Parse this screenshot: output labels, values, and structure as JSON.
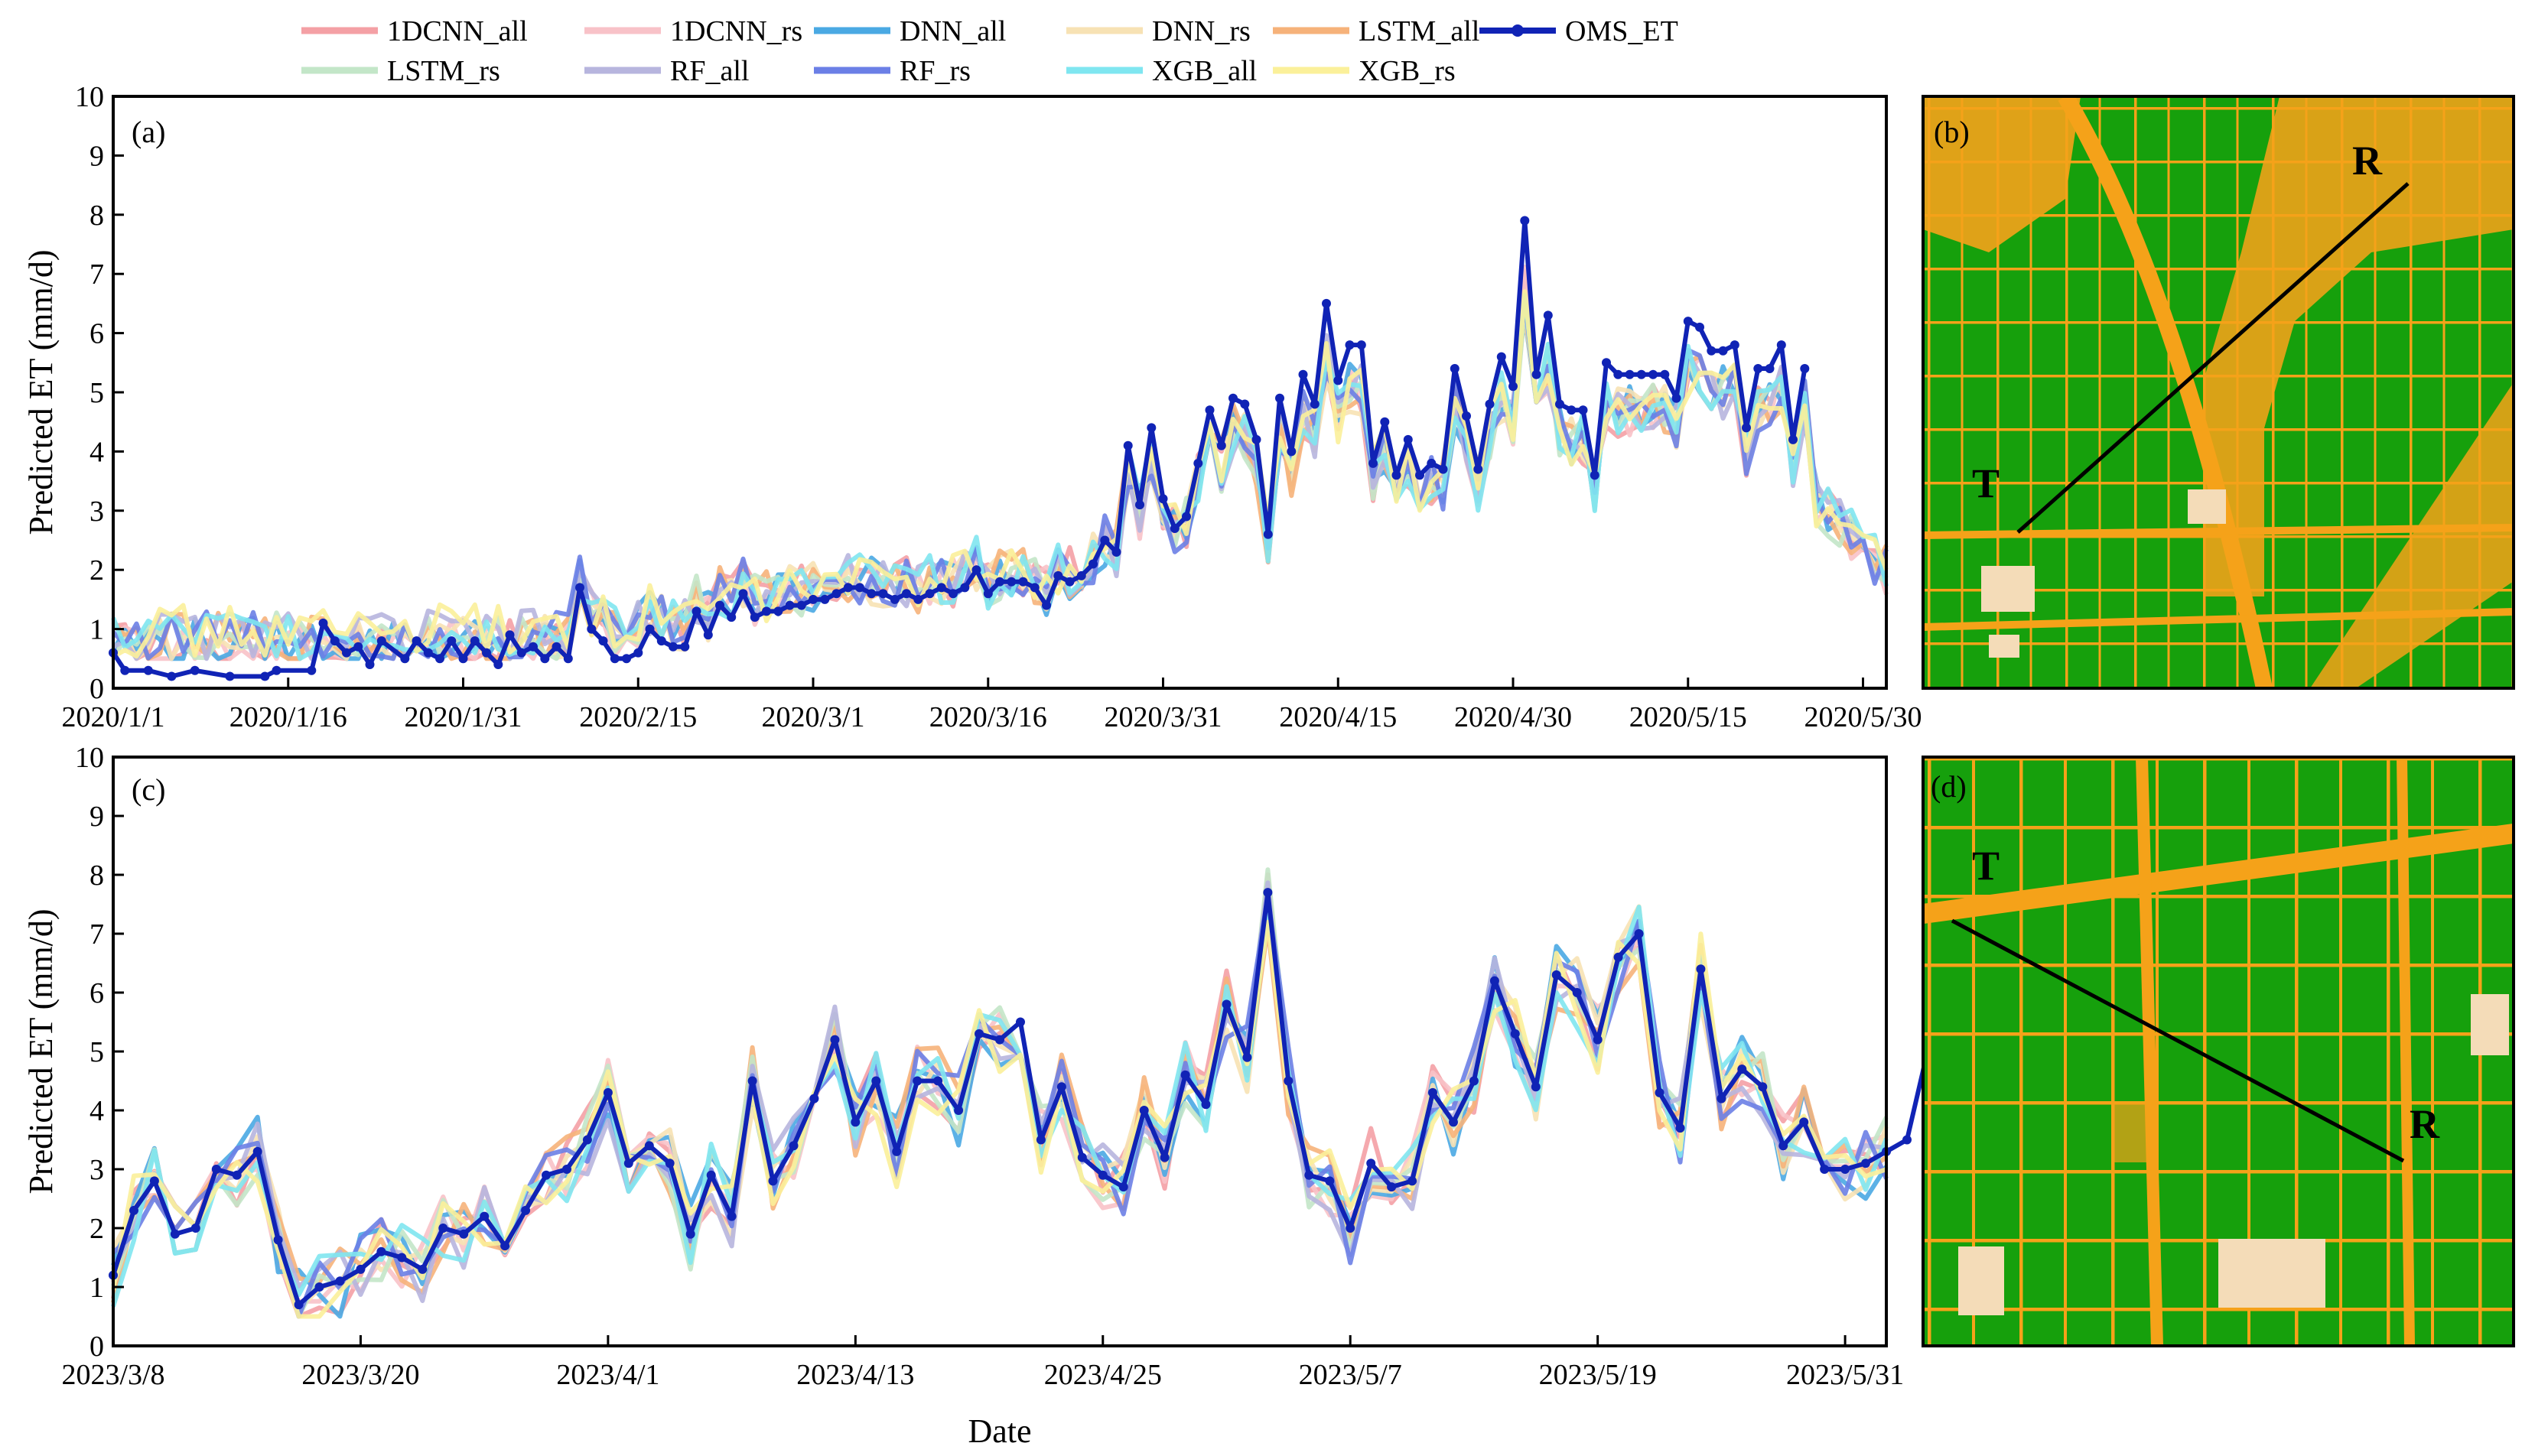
{
  "colors": {
    "1DCNN_all": "#f4a0a5",
    "1DCNN_rs": "#f8c2c8",
    "DNN_all": "#4aa9e3",
    "DNN_rs": "#f7e2b4",
    "LSTM_all": "#f6b27a",
    "LSTM_rs": "#c3e6c8",
    "RF_all": "#b7b5de",
    "RF_rs": "#6b7fe6",
    "XGB_all": "#7fe6f0",
    "XGB_rs": "#fbf09a",
    "OMS_ET": "#1023b5",
    "map_green": "#16a00c",
    "map_orange": "#f5a219",
    "map_beige": "#f4dcb8"
  },
  "legend": [
    "1DCNN_all",
    "1DCNN_rs",
    "DNN_all",
    "DNN_rs",
    "LSTM_all",
    "OMS_ET",
    "LSTM_rs",
    "RF_all",
    "RF_rs",
    "XGB_all",
    "XGB_rs"
  ],
  "panels": {
    "a": "(a)",
    "b": "(b)",
    "c": "(c)",
    "d": "(d)"
  },
  "maps": {
    "b": {
      "T": "T",
      "R": "R"
    },
    "d": {
      "T": "T",
      "R": "R"
    }
  },
  "chart_data": [
    {
      "id": "a",
      "type": "line",
      "title": "",
      "xlabel": "",
      "ylabel": "Predicted ET (mm/d)",
      "ylim": [
        0,
        10
      ],
      "yticks": [
        0,
        1,
        2,
        3,
        4,
        5,
        6,
        7,
        8,
        9,
        10
      ],
      "xticklabels": [
        "2020/1/1",
        "2020/1/16",
        "2020/1/31",
        "2020/2/15",
        "2020/3/1",
        "2020/3/16",
        "2020/3/31",
        "2020/4/15",
        "2020/4/30",
        "2020/5/15",
        "2020/5/30"
      ],
      "xtick_days": [
        0,
        15,
        30,
        45,
        60,
        75,
        90,
        105,
        120,
        135,
        150
      ],
      "xlim": [
        0,
        152
      ],
      "oms_keypoints": [
        [
          0,
          0.6
        ],
        [
          1,
          0.3
        ],
        [
          3,
          0.3
        ],
        [
          5,
          0.2
        ],
        [
          7,
          0.3
        ],
        [
          10,
          0.2
        ],
        [
          13,
          0.2
        ],
        [
          14,
          0.3
        ],
        [
          17,
          0.3
        ],
        [
          18,
          1.1
        ],
        [
          19,
          0.8
        ],
        [
          20,
          0.6
        ],
        [
          21,
          0.7
        ],
        [
          22,
          0.4
        ],
        [
          23,
          0.8
        ],
        [
          25,
          0.5
        ],
        [
          26,
          0.8
        ],
        [
          27,
          0.6
        ],
        [
          28,
          0.5
        ],
        [
          29,
          0.8
        ],
        [
          30,
          0.5
        ],
        [
          31,
          0.8
        ],
        [
          32,
          0.6
        ],
        [
          33,
          0.4
        ],
        [
          34,
          0.9
        ],
        [
          35,
          0.6
        ],
        [
          36,
          0.7
        ],
        [
          37,
          0.5
        ],
        [
          38,
          0.7
        ],
        [
          39,
          0.5
        ],
        [
          40,
          1.7
        ],
        [
          41,
          1.0
        ],
        [
          42,
          0.8
        ],
        [
          43,
          0.5
        ],
        [
          44,
          0.5
        ],
        [
          45,
          0.6
        ],
        [
          46,
          1.0
        ],
        [
          47,
          0.8
        ],
        [
          48,
          0.7
        ],
        [
          49,
          0.7
        ],
        [
          50,
          1.3
        ],
        [
          51,
          0.9
        ],
        [
          52,
          1.4
        ],
        [
          53,
          1.2
        ],
        [
          54,
          1.6
        ],
        [
          55,
          1.2
        ],
        [
          56,
          1.3
        ],
        [
          57,
          1.3
        ],
        [
          58,
          1.4
        ],
        [
          59,
          1.4
        ],
        [
          60,
          1.5
        ],
        [
          61,
          1.5
        ],
        [
          62,
          1.6
        ],
        [
          63,
          1.7
        ],
        [
          64,
          1.7
        ],
        [
          65,
          1.6
        ],
        [
          66,
          1.6
        ],
        [
          67,
          1.5
        ],
        [
          68,
          1.6
        ],
        [
          69,
          1.5
        ],
        [
          70,
          1.6
        ],
        [
          71,
          1.7
        ],
        [
          72,
          1.6
        ],
        [
          73,
          1.7
        ],
        [
          74,
          2.0
        ],
        [
          75,
          1.6
        ],
        [
          76,
          1.8
        ],
        [
          77,
          1.8
        ],
        [
          78,
          1.8
        ],
        [
          79,
          1.7
        ],
        [
          80,
          1.4
        ],
        [
          81,
          1.9
        ],
        [
          82,
          1.8
        ],
        [
          83,
          1.9
        ],
        [
          84,
          2.1
        ],
        [
          85,
          2.5
        ],
        [
          86,
          2.3
        ],
        [
          87,
          4.1
        ],
        [
          88,
          3.1
        ],
        [
          89,
          4.4
        ],
        [
          90,
          3.2
        ],
        [
          91,
          2.7
        ],
        [
          92,
          2.9
        ],
        [
          93,
          3.8
        ],
        [
          94,
          4.7
        ],
        [
          95,
          4.1
        ],
        [
          96,
          4.9
        ],
        [
          97,
          4.8
        ],
        [
          98,
          4.2
        ],
        [
          99,
          2.6
        ],
        [
          100,
          4.9
        ],
        [
          101,
          4.0
        ],
        [
          102,
          5.3
        ],
        [
          103,
          4.8
        ],
        [
          104,
          6.5
        ],
        [
          105,
          5.2
        ],
        [
          106,
          5.8
        ],
        [
          107,
          5.8
        ],
        [
          108,
          3.8
        ],
        [
          109,
          4.5
        ],
        [
          110,
          3.6
        ],
        [
          111,
          4.2
        ],
        [
          112,
          3.6
        ],
        [
          113,
          3.8
        ],
        [
          114,
          3.7
        ],
        [
          115,
          5.4
        ],
        [
          116,
          4.6
        ],
        [
          117,
          3.7
        ],
        [
          118,
          4.8
        ],
        [
          119,
          5.6
        ],
        [
          120,
          5.1
        ],
        [
          121,
          7.9
        ],
        [
          122,
          5.3
        ],
        [
          123,
          6.3
        ],
        [
          124,
          4.8
        ],
        [
          125,
          4.7
        ],
        [
          126,
          4.7
        ],
        [
          127,
          3.6
        ],
        [
          128,
          5.5
        ],
        [
          129,
          5.3
        ],
        [
          130,
          5.3
        ],
        [
          131,
          5.3
        ],
        [
          132,
          5.3
        ],
        [
          133,
          5.3
        ],
        [
          134,
          4.9
        ],
        [
          135,
          6.2
        ],
        [
          136,
          6.1
        ],
        [
          137,
          5.7
        ],
        [
          138,
          5.7
        ],
        [
          139,
          5.8
        ],
        [
          140,
          4.4
        ],
        [
          141,
          5.4
        ],
        [
          142,
          5.4
        ],
        [
          143,
          5.8
        ],
        [
          144,
          4.2
        ],
        [
          145,
          5.4
        ]
      ]
    },
    {
      "id": "c",
      "type": "line",
      "title": "",
      "xlabel": "Date",
      "ylabel": "Predicted ET (mm/d)",
      "ylim": [
        0,
        10
      ],
      "yticks": [
        0,
        1,
        2,
        3,
        4,
        5,
        6,
        7,
        8,
        9,
        10
      ],
      "xticklabels": [
        "2023/3/8",
        "2023/3/20",
        "2023/4/1",
        "2023/4/13",
        "2023/4/25",
        "2023/5/7",
        "2023/5/19",
        "2023/5/31"
      ],
      "xtick_days": [
        0,
        12,
        24,
        36,
        48,
        60,
        72,
        84
      ],
      "xlim": [
        0,
        86
      ],
      "oms_keypoints": [
        [
          0,
          1.2
        ],
        [
          1,
          2.3
        ],
        [
          2,
          2.8
        ],
        [
          3,
          1.9
        ],
        [
          4,
          2.0
        ],
        [
          5,
          3.0
        ],
        [
          6,
          2.9
        ],
        [
          7,
          3.3
        ],
        [
          8,
          1.8
        ],
        [
          9,
          0.7
        ],
        [
          10,
          1.0
        ],
        [
          11,
          1.1
        ],
        [
          12,
          1.3
        ],
        [
          13,
          1.6
        ],
        [
          14,
          1.5
        ],
        [
          15,
          1.3
        ],
        [
          16,
          2.0
        ],
        [
          17,
          1.9
        ],
        [
          18,
          2.2
        ],
        [
          19,
          1.7
        ],
        [
          20,
          2.3
        ],
        [
          21,
          2.9
        ],
        [
          22,
          3.0
        ],
        [
          23,
          3.5
        ],
        [
          24,
          4.3
        ],
        [
          25,
          3.1
        ],
        [
          26,
          3.4
        ],
        [
          27,
          3.1
        ],
        [
          28,
          1.9
        ],
        [
          29,
          2.9
        ],
        [
          30,
          2.2
        ],
        [
          31,
          4.5
        ],
        [
          32,
          2.8
        ],
        [
          33,
          3.4
        ],
        [
          34,
          4.2
        ],
        [
          35,
          5.2
        ],
        [
          36,
          3.8
        ],
        [
          37,
          4.5
        ],
        [
          38,
          3.3
        ],
        [
          39,
          4.5
        ],
        [
          40,
          4.5
        ],
        [
          41,
          4.0
        ],
        [
          42,
          5.3
        ],
        [
          43,
          5.2
        ],
        [
          44,
          5.5
        ],
        [
          45,
          3.5
        ],
        [
          46,
          4.4
        ],
        [
          47,
          3.2
        ],
        [
          48,
          2.9
        ],
        [
          49,
          2.7
        ],
        [
          50,
          4.0
        ],
        [
          51,
          3.2
        ],
        [
          52,
          4.6
        ],
        [
          53,
          4.1
        ],
        [
          54,
          5.8
        ],
        [
          55,
          4.9
        ],
        [
          56,
          7.7
        ],
        [
          57,
          4.5
        ],
        [
          58,
          2.9
        ],
        [
          59,
          2.8
        ],
        [
          60,
          2.0
        ],
        [
          61,
          3.1
        ],
        [
          62,
          2.7
        ],
        [
          63,
          2.8
        ],
        [
          64,
          4.3
        ],
        [
          65,
          3.8
        ],
        [
          66,
          4.5
        ],
        [
          67,
          6.2
        ],
        [
          68,
          5.3
        ],
        [
          69,
          4.4
        ],
        [
          70,
          6.3
        ],
        [
          71,
          6.0
        ],
        [
          72,
          5.2
        ],
        [
          73,
          6.6
        ],
        [
          74,
          7.0
        ],
        [
          75,
          4.3
        ],
        [
          76,
          3.7
        ],
        [
          77,
          6.4
        ],
        [
          78,
          4.2
        ],
        [
          79,
          4.7
        ],
        [
          80,
          4.4
        ],
        [
          81,
          3.4
        ],
        [
          82,
          3.8
        ],
        [
          83,
          3.0
        ],
        [
          84,
          3.0
        ],
        [
          85,
          3.1
        ],
        [
          86,
          3.3
        ],
        [
          87,
          3.5
        ],
        [
          88,
          5.0
        ]
      ]
    }
  ]
}
